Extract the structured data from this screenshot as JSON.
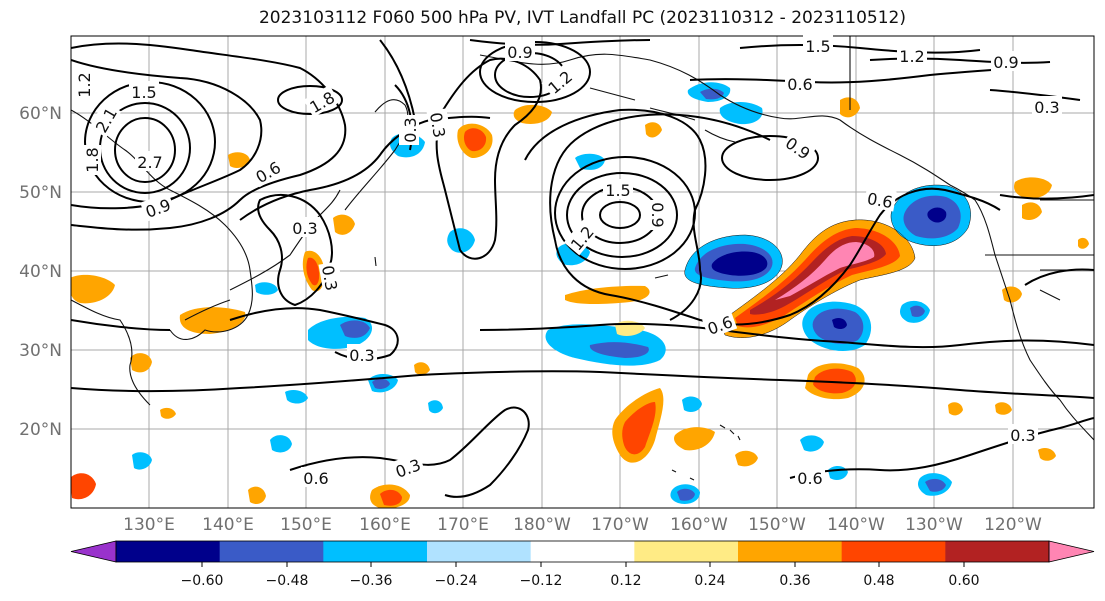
{
  "title": "2023103112 F060 500 hPa PV, IVT Landfall PC (2023110312 - 2023110512)",
  "map": {
    "lat_ticks": [
      "60°N",
      "50°N",
      "40°N",
      "30°N",
      "20°N"
    ],
    "lon_ticks": [
      "130°E",
      "140°E",
      "150°E",
      "160°E",
      "170°E",
      "180°W",
      "170°W",
      "160°W",
      "150°W",
      "140°W",
      "130°W",
      "120°W"
    ],
    "contour_labels": [
      "1.2",
      "1.5",
      "2.1",
      "1.8",
      "2.7",
      "0.9",
      "0.6",
      "1.8",
      "0.3",
      "0.9",
      "1.2",
      "1.5",
      "1.2",
      "0.9",
      "0.6",
      "0.6",
      "0.9",
      "1.2",
      "1.5",
      "0.9",
      "0.6",
      "0.3",
      "0.3",
      "0.6",
      "0.6",
      "0.3",
      "0.3",
      "0.3",
      "0.3",
      "0.3"
    ]
  },
  "colorbar": {
    "ticks": [
      "−0.60",
      "−0.48",
      "−0.36",
      "−0.24",
      "−0.12",
      "0.12",
      "0.24",
      "0.36",
      "0.48",
      "0.60"
    ],
    "colors": [
      "#9932CC",
      "#00008B",
      "#3A5BC7",
      "#00BFFF",
      "#B0E2FF",
      "#FFFFFF",
      "#FFEB85",
      "#FFA500",
      "#FF4500",
      "#B22222",
      "#FF85B3"
    ]
  }
}
